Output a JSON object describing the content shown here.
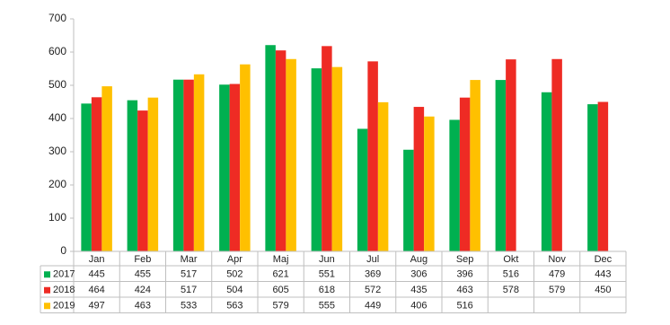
{
  "chart_data": {
    "type": "bar",
    "categories": [
      "Jan",
      "Feb",
      "Mar",
      "Apr",
      "Maj",
      "Jun",
      "Jul",
      "Aug",
      "Sep",
      "Okt",
      "Nov",
      "Dec"
    ],
    "series": [
      {
        "name": "2017",
        "color": "#00b050",
        "values": [
          445,
          455,
          517,
          502,
          621,
          551,
          369,
          306,
          396,
          516,
          479,
          443
        ]
      },
      {
        "name": "2018",
        "color": "#ee2b24",
        "values": [
          464,
          424,
          517,
          504,
          605,
          618,
          572,
          435,
          463,
          578,
          579,
          450
        ]
      },
      {
        "name": "2019",
        "color": "#ffc000",
        "values": [
          497,
          463,
          533,
          563,
          579,
          555,
          449,
          406,
          516,
          null,
          null,
          null
        ]
      }
    ],
    "ylim": [
      0,
      700
    ],
    "yticks": [
      0,
      100,
      200,
      300,
      400,
      500,
      600,
      700
    ],
    "grid": false
  }
}
